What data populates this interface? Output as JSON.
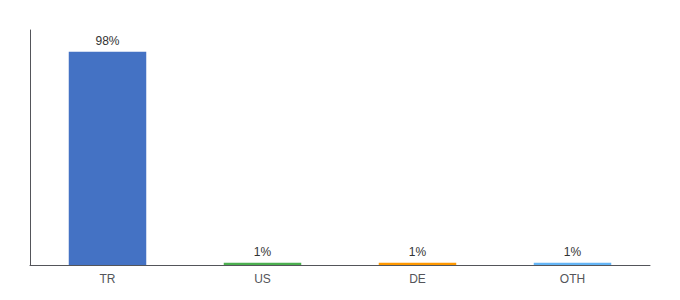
{
  "chart_data": {
    "type": "bar",
    "categories": [
      "TR",
      "US",
      "DE",
      "OTH"
    ],
    "values": [
      98,
      1,
      1,
      1
    ],
    "value_labels": [
      "98%",
      "1%",
      "1%",
      "1%"
    ],
    "colors": [
      "#4472c4",
      "#4caf50",
      "#ff9800",
      "#64b5f6"
    ],
    "ylim": [
      0,
      108
    ],
    "grid": false,
    "data_labels": true,
    "tick_labels": "x"
  }
}
